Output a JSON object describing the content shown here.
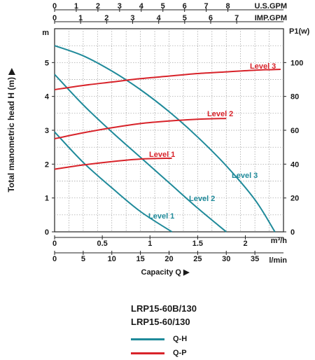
{
  "chart_data": {
    "type": "line",
    "top_axes": [
      {
        "unit": "U.S.GPM",
        "ticks": [
          "0",
          "1",
          "2",
          "3",
          "4",
          "5",
          "6",
          "7",
          "8"
        ]
      },
      {
        "unit": "IMP.GPM",
        "ticks": [
          "0",
          "1",
          "2",
          "3",
          "4",
          "5",
          "6",
          "7"
        ]
      }
    ],
    "bottom_axes": [
      {
        "unit": "m³/h",
        "ticks": [
          "0",
          "0.5",
          "1",
          "1.5",
          "2"
        ]
      },
      {
        "unit": "l/min",
        "ticks": [
          "0",
          "5",
          "10",
          "15",
          "20",
          "25",
          "30",
          "35"
        ]
      }
    ],
    "xlabel": "Capacity Q",
    "ylabel": "Total manometric head H (m)",
    "y_unit": "m",
    "y2_unit": "P1(w)",
    "ylim": [
      0,
      6
    ],
    "yticks": [
      "0",
      "1",
      "2",
      "3",
      "4",
      "5"
    ],
    "y2lim": [
      0,
      120
    ],
    "y2ticks": [
      "0",
      "20",
      "40",
      "60",
      "80",
      "100"
    ],
    "xlim_lmin": [
      0,
      40
    ],
    "grid": true,
    "colors": {
      "qh": "#1f8a9a",
      "qp": "#d8232a"
    },
    "qh_series": [
      {
        "name": "Level 1",
        "x": [
          0,
          5,
          10,
          15,
          20.5
        ],
        "y": [
          2.95,
          2.05,
          1.3,
          0.6,
          0.0
        ]
      },
      {
        "name": "Level 2",
        "x": [
          0,
          5,
          10,
          15,
          20,
          25,
          30
        ],
        "y": [
          4.65,
          3.75,
          2.95,
          2.2,
          1.45,
          0.7,
          0.0
        ]
      },
      {
        "name": "Level 3",
        "x": [
          0,
          5,
          10,
          15,
          20,
          25,
          30,
          35,
          38.5
        ],
        "y": [
          5.5,
          5.2,
          4.75,
          4.2,
          3.55,
          2.8,
          1.95,
          0.95,
          0.0
        ]
      }
    ],
    "qp_series": [
      {
        "name": "Level 1",
        "x": [
          0,
          5,
          10,
          15,
          20.5
        ],
        "y": [
          37,
          39.5,
          41.5,
          43,
          43.5
        ]
      },
      {
        "name": "Level 2",
        "x": [
          0,
          5,
          10,
          15,
          20,
          25,
          30
        ],
        "y": [
          55,
          58.5,
          61.5,
          64,
          65.5,
          66.5,
          67
        ]
      },
      {
        "name": "Level 3",
        "x": [
          0,
          5,
          10,
          15,
          20,
          25,
          30,
          35,
          39.5
        ],
        "y": [
          84,
          86.5,
          88.5,
          90.5,
          92,
          93.5,
          94.5,
          95.5,
          96
        ]
      }
    ]
  },
  "models": [
    "LRP15-60B/130",
    "LRP15-60/130"
  ],
  "legend": [
    {
      "label": "Q-H",
      "color": "#1f8a9a"
    },
    {
      "label": "Q-P",
      "color": "#d8232a"
    }
  ]
}
